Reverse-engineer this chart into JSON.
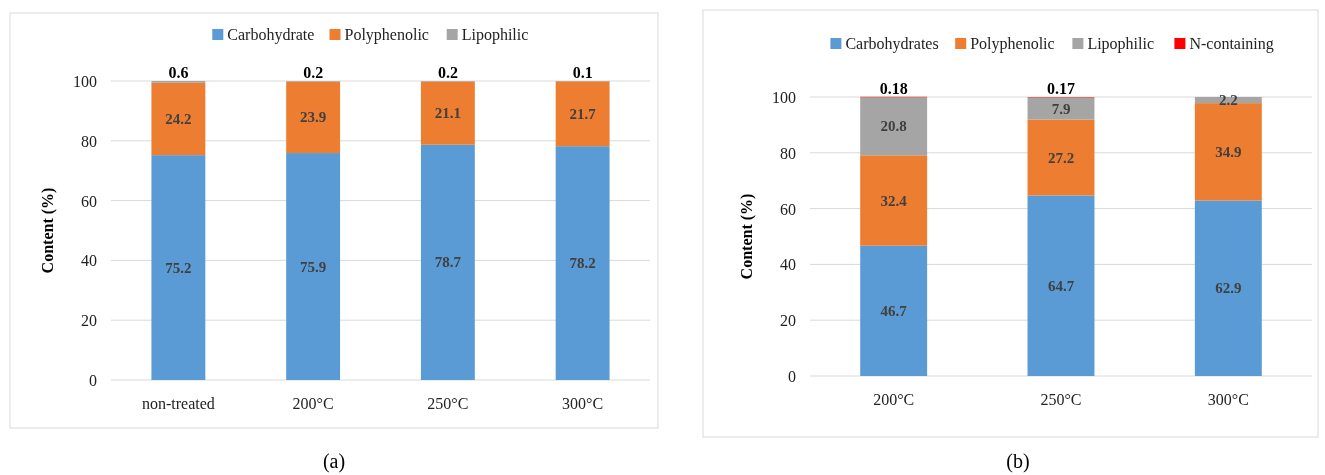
{
  "chart_data": [
    {
      "type": "bar",
      "title": "(a)",
      "stacked": true,
      "categories": [
        "non-treated",
        "200°C",
        "250°C",
        "300°C"
      ],
      "ylabel": "Content (%)",
      "ylim": [
        0,
        100
      ],
      "yticks": [
        0,
        20,
        40,
        60,
        80,
        100
      ],
      "grid": "y",
      "legend": "top",
      "series": [
        {
          "name": "Carbohydrate",
          "color": "#5b9bd5",
          "values": [
            75.2,
            75.9,
            78.7,
            78.2
          ],
          "value_labels": [
            "75.2",
            "75.9",
            "78.7",
            "78.2"
          ]
        },
        {
          "name": "Polyphenolic",
          "color": "#ed7d31",
          "values": [
            24.2,
            23.9,
            21.1,
            21.7
          ],
          "value_labels": [
            "24.2",
            "23.9",
            "21.1",
            "21.7"
          ]
        },
        {
          "name": "Lipophilic",
          "color": "#a5a5a5",
          "values": [
            0.6,
            0.2,
            0.2,
            0.1
          ],
          "value_labels": [
            "0.6",
            "0.2",
            "0.2",
            "0.1"
          ]
        }
      ]
    },
    {
      "type": "bar",
      "title": "(b)",
      "stacked": true,
      "categories": [
        "200°C",
        "250°C",
        "300°C"
      ],
      "ylabel": "Content (%)",
      "ylim": [
        0,
        100
      ],
      "yticks": [
        0,
        20,
        40,
        60,
        80,
        100
      ],
      "grid": "y",
      "legend": "top",
      "series": [
        {
          "name": "Carbohydrates",
          "color": "#5b9bd5",
          "values": [
            46.7,
            64.7,
            62.9
          ],
          "value_labels": [
            "46.7",
            "64.7",
            "62.9"
          ]
        },
        {
          "name": "Polyphenolic",
          "color": "#ed7d31",
          "values": [
            32.4,
            27.2,
            34.9
          ],
          "value_labels": [
            "32.4",
            "27.2",
            "34.9"
          ]
        },
        {
          "name": "Lipophilic",
          "color": "#a5a5a5",
          "values": [
            20.8,
            7.9,
            2.2
          ],
          "value_labels": [
            "20.8",
            "7.9",
            "2.2"
          ]
        },
        {
          "name": "N-containing",
          "color": "#ff0000",
          "values": [
            0.18,
            0.17,
            null
          ],
          "value_labels": [
            "0.18",
            "0.17",
            null
          ]
        }
      ]
    }
  ]
}
